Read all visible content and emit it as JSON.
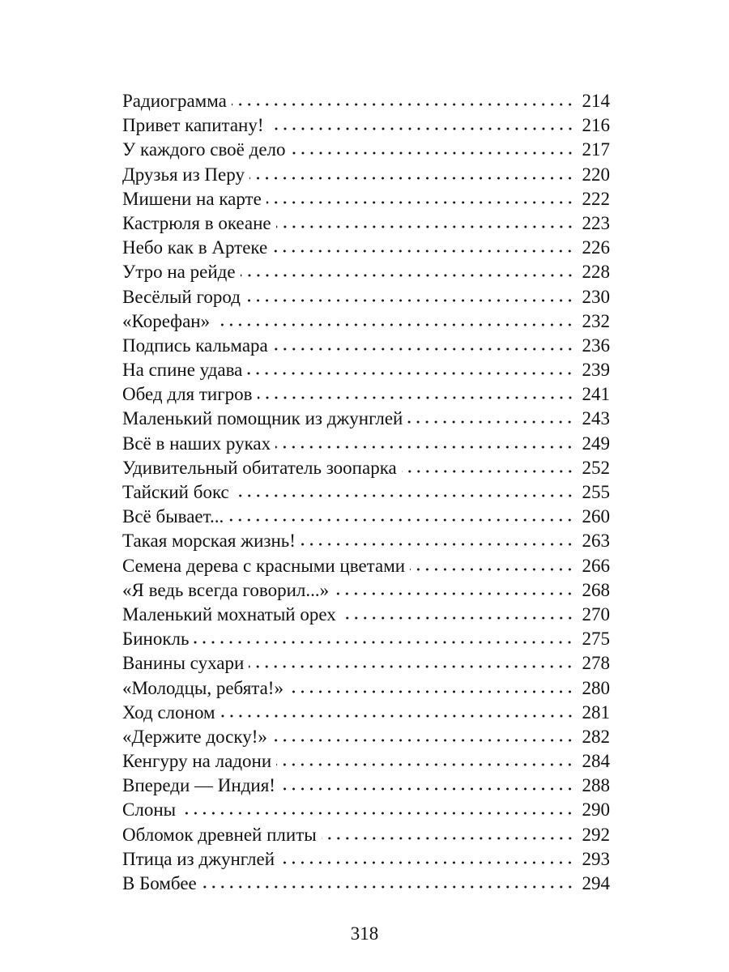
{
  "toc": [
    {
      "title": "Радиограмма",
      "page": "214"
    },
    {
      "title": "Привет капитану!",
      "page": "216"
    },
    {
      "title": "У каждого своё дело",
      "page": "217"
    },
    {
      "title": "Друзья из Перу",
      "page": "220"
    },
    {
      "title": "Мишени на карте",
      "page": "222"
    },
    {
      "title": "Кастрюля в океане",
      "page": "223"
    },
    {
      "title": "Небо как в Артеке",
      "page": "226"
    },
    {
      "title": "Утро на рейде",
      "page": "228"
    },
    {
      "title": "Весёлый город",
      "page": "230"
    },
    {
      "title": "«Корефан»",
      "page": "232"
    },
    {
      "title": "Подпись кальмара",
      "page": "236"
    },
    {
      "title": "На спине удава",
      "page": "239"
    },
    {
      "title": "Обед для тигров",
      "page": "241"
    },
    {
      "title": "Маленький помощник из джунглей",
      "page": "243"
    },
    {
      "title": "Всё в наших руках",
      "page": "249"
    },
    {
      "title": "Удивительный обитатель зоопарка",
      "page": "252"
    },
    {
      "title": "Тайский бокс",
      "page": "255"
    },
    {
      "title": "Всё бывает...",
      "page": "260"
    },
    {
      "title": "Такая морская жизнь!",
      "page": "263"
    },
    {
      "title": "Семена дерева с красными цветами",
      "page": "266"
    },
    {
      "title": "«Я ведь всегда говорил...»",
      "page": "268"
    },
    {
      "title": "Маленький мохнатый орех",
      "page": "270"
    },
    {
      "title": "Бинокль",
      "page": "275"
    },
    {
      "title": "Ванины сухари",
      "page": "278"
    },
    {
      "title": "«Молодцы, ребята!»",
      "page": "280"
    },
    {
      "title": "Ход слоном",
      "page": "281"
    },
    {
      "title": "«Держите доску!»",
      "page": "282"
    },
    {
      "title": "Кенгуру на ладони",
      "page": "284"
    },
    {
      "title": "Впереди — Индия!",
      "page": "288"
    },
    {
      "title": "Слоны",
      "page": "290"
    },
    {
      "title": "Обломок древней плиты",
      "page": "292"
    },
    {
      "title": "Птица из джунглей",
      "page": "293"
    },
    {
      "title": "В Бомбее",
      "page": "294"
    }
  ],
  "page_number": "318"
}
